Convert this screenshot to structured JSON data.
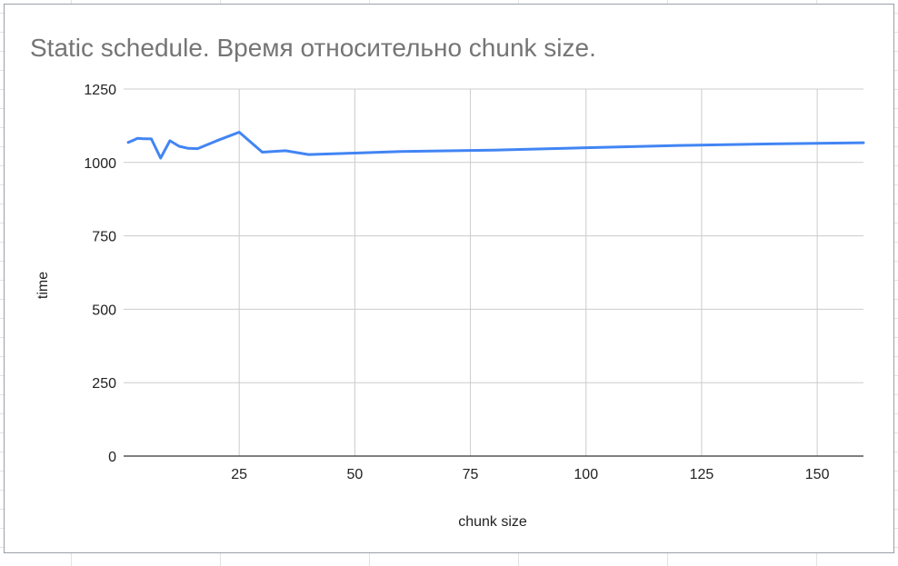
{
  "chart_data": {
    "type": "line",
    "title": "Static schedule. Время относительно chunk size.",
    "xlabel": "chunk size",
    "ylabel": "time",
    "xlim": [
      0,
      160
    ],
    "ylim": [
      0,
      1250
    ],
    "x_ticks": [
      25,
      50,
      75,
      100,
      125,
      150
    ],
    "y_ticks": [
      0,
      250,
      500,
      750,
      1000,
      1250
    ],
    "grid": true,
    "legend": "none",
    "series": [
      {
        "color": "#4285f4",
        "x": [
          1,
          2,
          3,
          4,
          6,
          8,
          10,
          12,
          14,
          16,
          20,
          25,
          30,
          35,
          40,
          50,
          60,
          80,
          100,
          120,
          140,
          160
        ],
        "y": [
          1068,
          1075,
          1082,
          1081,
          1080,
          1015,
          1074,
          1055,
          1048,
          1047,
          1073,
          1103,
          1035,
          1040,
          1027,
          1032,
          1037,
          1042,
          1050,
          1058,
          1063,
          1067
        ]
      }
    ]
  }
}
